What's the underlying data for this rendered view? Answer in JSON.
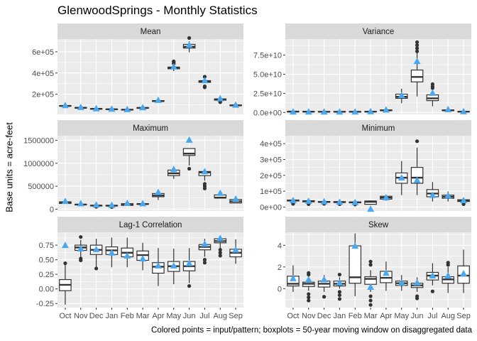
{
  "title": "GlenwoodSprings - Monthly Statistics",
  "ylabel": "Base units = acre-feet",
  "caption": "Colored points = input/pattern; boxplots = 50-year moving window on disaggregated data",
  "colors": {
    "panel_bg": "#ebebeb",
    "strip_bg": "#d9d9d9",
    "grid": "#ffffff",
    "box_line": "#333333",
    "box_fill": "#ffffff",
    "point": "#4aa8f0"
  },
  "chart_data": [
    {
      "type": "box",
      "title": "Mean",
      "categories": [
        "Oct",
        "Nov",
        "Dec",
        "Jan",
        "Feb",
        "Mar",
        "Apr",
        "May",
        "Jun",
        "Jul",
        "Aug",
        "Sep"
      ],
      "ylim": [
        10000,
        720000
      ],
      "yticks": [
        200000,
        400000,
        600000
      ],
      "ytick_labels": [
        "2e+05",
        "4e+05",
        "6e+05"
      ],
      "boxes": [
        {
          "min": 85000,
          "q1": 88000,
          "median": 90000,
          "q3": 92000,
          "max": 95000,
          "outliers": []
        },
        {
          "min": 68000,
          "q1": 70000,
          "median": 72000,
          "q3": 74000,
          "max": 77000,
          "outliers": []
        },
        {
          "min": 58000,
          "q1": 60000,
          "median": 62000,
          "q3": 64000,
          "max": 66000,
          "outliers": []
        },
        {
          "min": 54000,
          "q1": 56000,
          "median": 58000,
          "q3": 60000,
          "max": 62000,
          "outliers": []
        },
        {
          "min": 50000,
          "q1": 52000,
          "median": 54000,
          "q3": 56000,
          "max": 58000,
          "outliers": []
        },
        {
          "min": 66000,
          "q1": 68000,
          "median": 71000,
          "q3": 74000,
          "max": 77000,
          "outliers": []
        },
        {
          "min": 128000,
          "q1": 132000,
          "median": 136000,
          "q3": 140000,
          "max": 145000,
          "outliers": []
        },
        {
          "min": 418000,
          "q1": 440000,
          "median": 448000,
          "q3": 456000,
          "max": 470000,
          "outliers": [
            490000,
            500000,
            510000
          ]
        },
        {
          "min": 595000,
          "q1": 635000,
          "median": 648000,
          "q3": 670000,
          "max": 700000,
          "outliers": [
            730000
          ]
        },
        {
          "min": 305000,
          "q1": 312000,
          "median": 320000,
          "q3": 328000,
          "max": 345000,
          "outliers": [
            265000,
            275000,
            365000
          ]
        },
        {
          "min": 132000,
          "q1": 144000,
          "median": 150000,
          "q3": 156000,
          "max": 165000,
          "outliers": [
            125000,
            130000
          ]
        },
        {
          "min": 88000,
          "q1": 92000,
          "median": 95000,
          "q3": 98000,
          "max": 102000,
          "outliers": []
        }
      ],
      "points": [
        95000,
        78000,
        65000,
        62000,
        58000,
        75000,
        145000,
        460000,
        665000,
        330000,
        160000,
        100000
      ]
    },
    {
      "type": "box",
      "title": "Variance",
      "categories": [
        "Oct",
        "Nov",
        "Dec",
        "Jan",
        "Feb",
        "Mar",
        "Apr",
        "May",
        "Jun",
        "Jul",
        "Aug",
        "Sep"
      ],
      "ylim": [
        -2500000000,
        96000000000
      ],
      "yticks": [
        0,
        25000000000,
        50000000000,
        75000000000
      ],
      "ytick_labels": [
        "0.0e+00",
        "2.5e+10",
        "5.0e+10",
        "7.5e+10"
      ],
      "boxes": [
        {
          "min": 600000000,
          "q1": 900000000,
          "median": 1100000000,
          "q3": 1300000000,
          "max": 1600000000,
          "outliers": []
        },
        {
          "min": 500000000,
          "q1": 800000000,
          "median": 1000000000,
          "q3": 1200000000,
          "max": 1500000000,
          "outliers": []
        },
        {
          "min": 400000000,
          "q1": 700000000,
          "median": 900000000,
          "q3": 1100000000,
          "max": 1400000000,
          "outliers": []
        },
        {
          "min": 400000000,
          "q1": 700000000,
          "median": 900000000,
          "q3": 1100000000,
          "max": 1400000000,
          "outliers": []
        },
        {
          "min": 400000000,
          "q1": 700000000,
          "median": 900000000,
          "q3": 1100000000,
          "max": 1400000000,
          "outliers": []
        },
        {
          "min": 500000000,
          "q1": 800000000,
          "median": 1000000000,
          "q3": 1300000000,
          "max": 1600000000,
          "outliers": []
        },
        {
          "min": 1500000000,
          "q1": 2300000000,
          "median": 2800000000,
          "q3": 3300000000,
          "max": 6000000000,
          "outliers": []
        },
        {
          "min": 12000000000,
          "q1": 18500000000,
          "median": 20500000000,
          "q3": 24000000000,
          "max": 31000000000,
          "outliers": []
        },
        {
          "min": 21000000000,
          "q1": 40000000000,
          "median": 46500000000,
          "q3": 55500000000,
          "max": 79000000000,
          "outliers": [
            80000000000,
            84000000000,
            88000000000,
            92000000000
          ]
        },
        {
          "min": 8000000000,
          "q1": 15500000000,
          "median": 18500000000,
          "q3": 23000000000,
          "max": 30000000000,
          "outliers": [
            32000000000,
            34000000000,
            37000000000
          ]
        },
        {
          "min": 1800000000,
          "q1": 2300000000,
          "median": 2800000000,
          "q3": 3300000000,
          "max": 4200000000,
          "outliers": []
        },
        {
          "min": 500000000,
          "q1": 800000000,
          "median": 1000000000,
          "q3": 1200000000,
          "max": 1500000000,
          "outliers": []
        }
      ],
      "points": [
        1000000000,
        1000000000,
        1000000000,
        1000000000,
        1000000000,
        1300000000,
        3500000000,
        22500000000,
        67000000000,
        25500000000,
        4000000000,
        1300000000
      ]
    },
    {
      "type": "box",
      "title": "Maximum",
      "categories": [
        "Oct",
        "Nov",
        "Dec",
        "Jan",
        "Feb",
        "Mar",
        "Apr",
        "May",
        "Jun",
        "Jul",
        "Aug",
        "Sep"
      ],
      "ylim": [
        -40000,
        1600000
      ],
      "yticks": [
        0,
        500000,
        1000000,
        1500000
      ],
      "ytick_labels": [
        "0",
        "500000",
        "1000000",
        "1500000"
      ],
      "boxes": [
        {
          "min": 120000,
          "q1": 125000,
          "median": 140000,
          "q3": 160000,
          "max": 165000,
          "outliers": []
        },
        {
          "min": 95000,
          "q1": 98000,
          "median": 100000,
          "q3": 102000,
          "max": 105000,
          "outliers": []
        },
        {
          "min": 60000,
          "q1": 72000,
          "median": 78000,
          "q3": 82000,
          "max": 85000,
          "outliers": [
            50000
          ]
        },
        {
          "min": 60000,
          "q1": 72000,
          "median": 76000,
          "q3": 80000,
          "max": 83000,
          "outliers": [
            45000
          ]
        },
        {
          "min": 80000,
          "q1": 82000,
          "median": 95000,
          "q3": 120000,
          "max": 125000,
          "outliers": []
        },
        {
          "min": 105000,
          "q1": 108000,
          "median": 112000,
          "q3": 116000,
          "max": 120000,
          "outliers": []
        },
        {
          "min": 200000,
          "q1": 270000,
          "median": 300000,
          "q3": 340000,
          "max": 345000,
          "outliers": []
        },
        {
          "min": 660000,
          "q1": 730000,
          "median": 780000,
          "q3": 850000,
          "max": 860000,
          "outliers": []
        },
        {
          "min": 950000,
          "q1": 1170000,
          "median": 1210000,
          "q3": 1320000,
          "max": 1330000,
          "outliers": [
            880000
          ]
        },
        {
          "min": 620000,
          "q1": 730000,
          "median": 800000,
          "q3": 820000,
          "max": 825000,
          "outliers": [
            450000,
            500000,
            550000
          ]
        },
        {
          "min": 240000,
          "q1": 245000,
          "median": 250000,
          "q3": 310000,
          "max": 315000,
          "outliers": []
        },
        {
          "min": 130000,
          "q1": 135000,
          "median": 170000,
          "q3": 210000,
          "max": 215000,
          "outliers": []
        }
      ],
      "points": [
        175000,
        125000,
        95000,
        90000,
        135000,
        125000,
        370000,
        870000,
        1510000,
        820000,
        350000,
        225000
      ]
    },
    {
      "type": "box",
      "title": "Minimum",
      "categories": [
        "Oct",
        "Nov",
        "Dec",
        "Jan",
        "Feb",
        "Mar",
        "Apr",
        "May",
        "Jun",
        "Jul",
        "Aug",
        "Sep"
      ],
      "ylim": [
        -25000,
        450000
      ],
      "yticks": [
        0,
        100000,
        200000,
        300000,
        400000
      ],
      "ytick_labels": [
        "0e+00",
        "1e+05",
        "2e+05",
        "3e+05",
        "4e+05"
      ],
      "boxes": [
        {
          "min": 30000,
          "q1": 38000,
          "median": 42000,
          "q3": 44000,
          "max": 55000,
          "outliers": [
            20000,
            24000
          ]
        },
        {
          "min": 28000,
          "q1": 33000,
          "median": 36000,
          "q3": 40000,
          "max": 48000,
          "outliers": [
            18000,
            22000
          ]
        },
        {
          "min": 25000,
          "q1": 30000,
          "median": 32000,
          "q3": 35000,
          "max": 40000,
          "outliers": [
            20000,
            23000
          ]
        },
        {
          "min": 23000,
          "q1": 29000,
          "median": 31000,
          "q3": 34000,
          "max": 38000,
          "outliers": [
            18000
          ]
        },
        {
          "min": 22000,
          "q1": 27000,
          "median": 29000,
          "q3": 32000,
          "max": 36000,
          "outliers": [
            16000
          ]
        },
        {
          "min": 14000,
          "q1": 17000,
          "median": 33000,
          "q3": 38000,
          "max": 42000,
          "outliers": [
            -15000
          ]
        },
        {
          "min": 40000,
          "q1": 50000,
          "median": 60000,
          "q3": 68000,
          "max": 72000,
          "outliers": []
        },
        {
          "min": 75000,
          "q1": 150000,
          "median": 185000,
          "q3": 215000,
          "max": 290000,
          "outliers": []
        },
        {
          "min": 75000,
          "q1": 150000,
          "median": 185000,
          "q3": 250000,
          "max": 375000,
          "outliers": [
            415000
          ]
        },
        {
          "min": 35000,
          "q1": 65000,
          "median": 85000,
          "q3": 110000,
          "max": 158000,
          "outliers": []
        },
        {
          "min": 35000,
          "q1": 55000,
          "median": 65000,
          "q3": 75000,
          "max": 98000,
          "outliers": []
        },
        {
          "min": 30000,
          "q1": 35000,
          "median": 42000,
          "q3": 46000,
          "max": 50000,
          "outliers": [
            18000,
            22000
          ]
        }
      ],
      "points": [
        42000,
        38000,
        35000,
        32000,
        30000,
        -12000,
        60000,
        185000,
        170000,
        75000,
        72000,
        42000
      ]
    },
    {
      "type": "box",
      "title": "Lag-1 Correlation",
      "categories": [
        "Oct",
        "Nov",
        "Dec",
        "Jan",
        "Feb",
        "Mar",
        "Apr",
        "May",
        "Jun",
        "Jul",
        "Aug",
        "Sep"
      ],
      "ylim": [
        -0.32,
        0.97
      ],
      "yticks": [
        -0.25,
        0,
        0.25,
        0.5,
        0.75
      ],
      "ytick_labels": [
        "-0.25",
        "0.00",
        "0.25",
        "0.50",
        "0.75"
      ],
      "boxes": [
        {
          "min": -0.27,
          "q1": -0.03,
          "median": 0.07,
          "q3": 0.16,
          "max": 0.43,
          "outliers": [
            0.44
          ]
        },
        {
          "min": 0.55,
          "q1": 0.66,
          "median": 0.71,
          "q3": 0.75,
          "max": 0.84,
          "outliers": [
            0.49,
            0.52,
            0.89
          ]
        },
        {
          "min": 0.37,
          "q1": 0.59,
          "median": 0.67,
          "q3": 0.75,
          "max": 0.86,
          "outliers": [
            0.35
          ]
        },
        {
          "min": 0.37,
          "q1": 0.59,
          "median": 0.66,
          "q3": 0.72,
          "max": 0.88,
          "outliers": []
        },
        {
          "min": 0.37,
          "q1": 0.55,
          "median": 0.62,
          "q3": 0.7,
          "max": 0.88,
          "outliers": []
        },
        {
          "min": 0.32,
          "q1": 0.49,
          "median": 0.58,
          "q3": 0.65,
          "max": 0.79,
          "outliers": []
        },
        {
          "min": 0.05,
          "q1": 0.27,
          "median": 0.38,
          "q3": 0.45,
          "max": 0.7,
          "outliers": []
        },
        {
          "min": 0.08,
          "q1": 0.3,
          "median": 0.39,
          "q3": 0.47,
          "max": 0.69,
          "outliers": []
        },
        {
          "min": 0.1,
          "q1": 0.31,
          "median": 0.39,
          "q3": 0.47,
          "max": 0.7,
          "outliers": [
            0.05
          ]
        },
        {
          "min": 0.55,
          "q1": 0.67,
          "median": 0.72,
          "q3": 0.76,
          "max": 0.86,
          "outliers": [
            0.45,
            0.5
          ]
        },
        {
          "min": 0.7,
          "q1": 0.79,
          "median": 0.82,
          "q3": 0.86,
          "max": 0.91,
          "outliers": [
            0.57,
            0.62,
            0.67
          ]
        },
        {
          "min": 0.43,
          "q1": 0.55,
          "median": 0.62,
          "q3": 0.68,
          "max": 0.85,
          "outliers": []
        }
      ],
      "points": [
        0.75,
        0.69,
        0.68,
        0.62,
        0.57,
        0.52,
        0.4,
        0.4,
        0.44,
        0.77,
        0.87,
        0.67
      ]
    },
    {
      "type": "box",
      "title": "Skew",
      "categories": [
        "Oct",
        "Nov",
        "Dec",
        "Jan",
        "Feb",
        "Mar",
        "Apr",
        "May",
        "Jun",
        "Jul",
        "Aug",
        "Sep"
      ],
      "ylim": [
        -1.75,
        5.2
      ],
      "yticks": [
        0,
        2,
        4
      ],
      "ytick_labels": [
        "0",
        "2",
        "4"
      ],
      "boxes": [
        {
          "min": -0.3,
          "q1": 0.25,
          "median": 0.45,
          "q3": 1.15,
          "max": 2.15,
          "outliers": []
        },
        {
          "min": -0.2,
          "q1": 0.2,
          "median": 0.45,
          "q3": 0.6,
          "max": 1.2,
          "outliers": [
            -1.1,
            -0.8,
            -0.5,
            1.3,
            1.45
          ]
        },
        {
          "min": -0.3,
          "q1": 0.15,
          "median": 0.45,
          "q3": 0.7,
          "max": 1.25,
          "outliers": [
            -0.75
          ]
        },
        {
          "min": 0.0,
          "q1": 0.25,
          "median": 0.45,
          "q3": 0.7,
          "max": 1.05,
          "outliers": [
            -0.95,
            -0.6,
            -0.3,
            1.3
          ]
        },
        {
          "min": -0.7,
          "q1": 0.5,
          "median": 1.05,
          "q3": 3.95,
          "max": 5.1,
          "outliers": []
        },
        {
          "min": -0.3,
          "q1": 0.4,
          "median": 0.9,
          "q3": 1.1,
          "max": 1.7,
          "outliers": [
            -1.5,
            -1.1,
            -0.7,
            2.2,
            2.5
          ]
        },
        {
          "min": -0.2,
          "q1": 0.55,
          "median": 1.0,
          "q3": 1.6,
          "max": 2.5,
          "outliers": []
        },
        {
          "min": -0.2,
          "q1": 0.3,
          "median": 0.5,
          "q3": 0.7,
          "max": 1.25,
          "outliers": []
        },
        {
          "min": -0.3,
          "q1": 0.1,
          "median": 0.3,
          "q3": 0.5,
          "max": 1.05,
          "outliers": [
            -0.9,
            -0.7
          ]
        },
        {
          "min": 0.3,
          "q1": 0.8,
          "median": 1.2,
          "q3": 1.5,
          "max": 2.35,
          "outliers": [
            -0.25
          ]
        },
        {
          "min": -0.4,
          "q1": 0.5,
          "median": 0.85,
          "q3": 1.1,
          "max": 2.0,
          "outliers": [
            2.2,
            2.4
          ]
        },
        {
          "min": -0.4,
          "q1": 0.5,
          "median": 1.2,
          "q3": 2.1,
          "max": 3.6,
          "outliers": []
        }
      ],
      "points": [
        0.95,
        0.85,
        0.85,
        0.55,
        3.95,
        0.15,
        1.45,
        0.55,
        0.55,
        1.2,
        1.2,
        1.4
      ]
    }
  ]
}
